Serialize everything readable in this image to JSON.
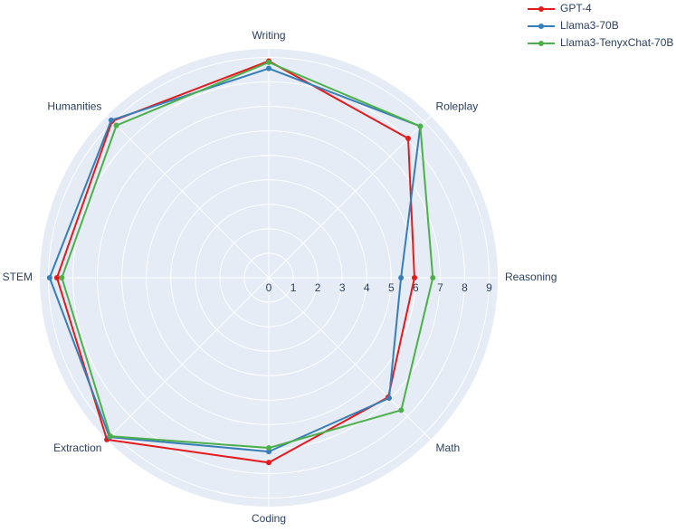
{
  "chart_data": {
    "type": "radar",
    "categories": [
      "Writing",
      "Roleplay",
      "Reasoning",
      "Math",
      "Coding",
      "Extraction",
      "STEM",
      "Humanities"
    ],
    "rlim": [
      0,
      9.35
    ],
    "rticks": [
      0,
      1,
      2,
      3,
      4,
      5,
      6,
      7,
      8,
      9
    ],
    "grid": true,
    "legend": "top-right",
    "series": [
      {
        "name": "GPT-4",
        "color": "#e41a1c",
        "values": [
          8.85,
          8.05,
          5.95,
          6.9,
          7.55,
          9.35,
          8.65,
          9.05
        ]
      },
      {
        "name": "Llama3-70B",
        "color": "#377eb8",
        "values": [
          8.55,
          8.75,
          5.4,
          6.95,
          7.1,
          9.2,
          8.95,
          9.1
        ]
      },
      {
        "name": "Llama3-TenyxChat-70B",
        "color": "#4daf4a",
        "values": [
          8.8,
          8.75,
          6.7,
          7.65,
          6.95,
          9.15,
          8.45,
          8.8
        ]
      }
    ]
  }
}
